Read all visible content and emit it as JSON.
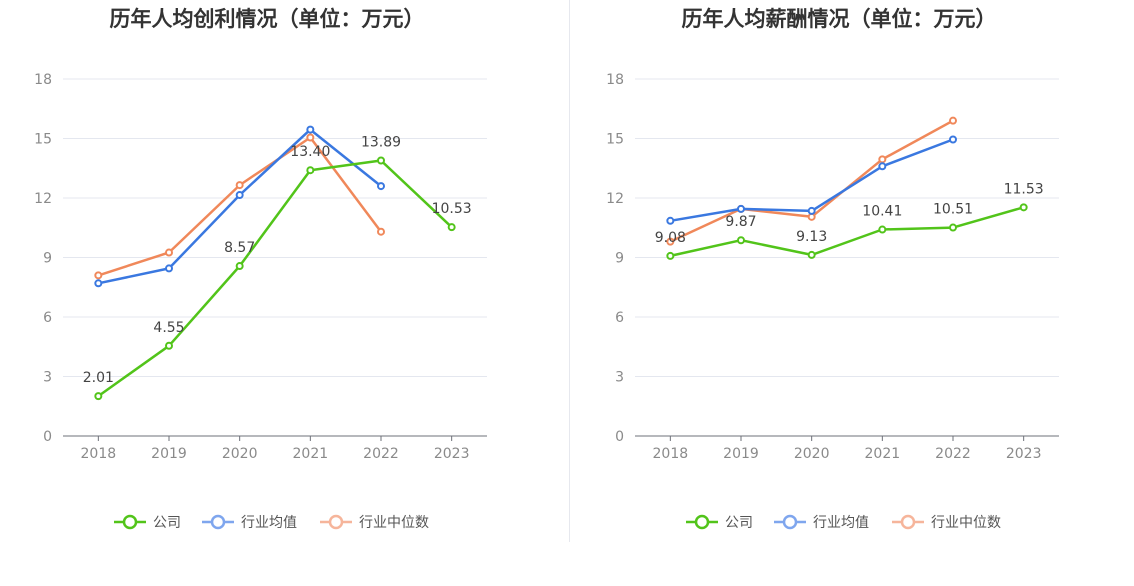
{
  "chart_data": [
    {
      "type": "line",
      "title": "历年人均创利情况（单位：万元）",
      "categories": [
        "2018",
        "2019",
        "2020",
        "2021",
        "2022",
        "2023"
      ],
      "ylim": [
        0,
        18
      ],
      "yticks": [
        0,
        3,
        6,
        9,
        12,
        15,
        18
      ],
      "grid": true,
      "legend_position": "bottom",
      "series": [
        {
          "name": "公司",
          "color": "#52c41a",
          "values": [
            2.01,
            4.55,
            8.57,
            13.4,
            13.89,
            10.53
          ],
          "labels": [
            "2.01",
            "4.55",
            "8.57",
            "13.40",
            "13.89",
            "10.53"
          ]
        },
        {
          "name": "行业均值",
          "color": "#3a78e0",
          "values": [
            7.7,
            8.45,
            12.15,
            15.45,
            12.6,
            null
          ]
        },
        {
          "name": "行业中位数",
          "color": "#f0885a",
          "values": [
            8.1,
            9.25,
            12.65,
            15.05,
            10.3,
            null
          ]
        }
      ]
    },
    {
      "type": "line",
      "title": "历年人均薪酬情况（单位：万元）",
      "categories": [
        "2018",
        "2019",
        "2020",
        "2021",
        "2022",
        "2023"
      ],
      "ylim": [
        0,
        18
      ],
      "yticks": [
        0,
        3,
        6,
        9,
        12,
        15,
        18
      ],
      "grid": true,
      "legend_position": "bottom",
      "series": [
        {
          "name": "公司",
          "color": "#52c41a",
          "values": [
            9.08,
            9.87,
            9.13,
            10.41,
            10.51,
            11.53
          ],
          "labels": [
            "9.08",
            "9.87",
            "9.13",
            "10.41",
            "10.51",
            "11.53"
          ]
        },
        {
          "name": "行业均值",
          "color": "#3a78e0",
          "values": [
            10.85,
            11.45,
            11.35,
            13.6,
            14.95,
            null
          ]
        },
        {
          "name": "行业中位数",
          "color": "#f0885a",
          "values": [
            9.8,
            11.45,
            11.05,
            13.95,
            15.9,
            null
          ]
        }
      ]
    }
  ],
  "legend": {
    "items": [
      {
        "label": "公司",
        "color": "#52c41a"
      },
      {
        "label": "行业均值",
        "color": "#7fa6ee"
      },
      {
        "label": "行业中位数",
        "color": "#f6b59b"
      }
    ]
  }
}
